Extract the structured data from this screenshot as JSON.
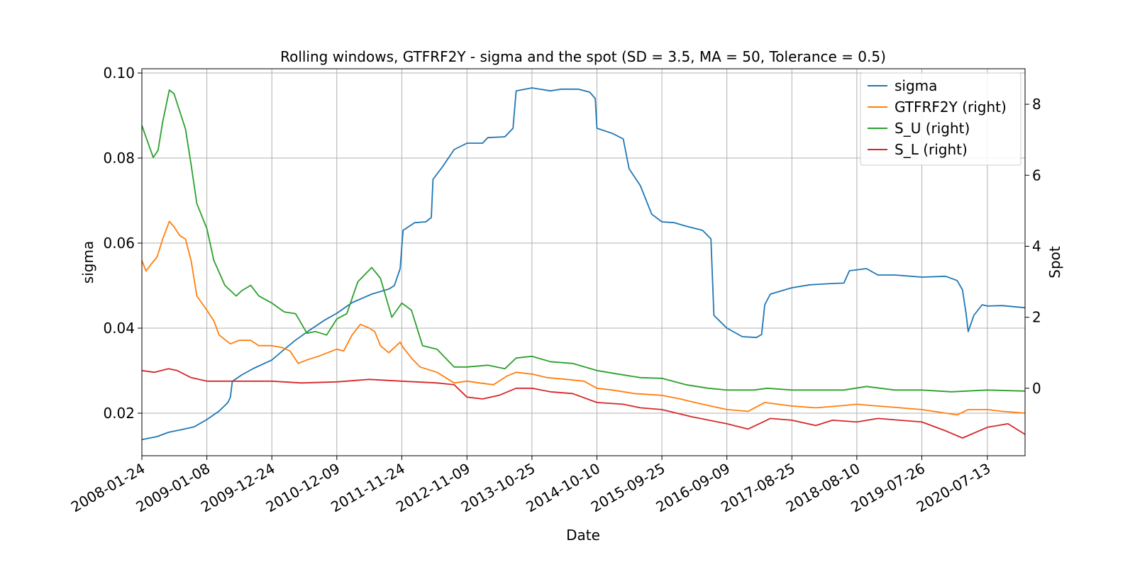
{
  "chart_data": {
    "type": "line",
    "title": "Rolling windows, GTFRF2Y - sigma and the spot (SD = 3.5, MA = 50, Tolerance  = 0.5)",
    "xlabel": "Date",
    "ylabel": "sigma",
    "ylabel_right": "Spot",
    "xlim": [
      "2008-01-24",
      "2021-02-01"
    ],
    "ylim": [
      0.01,
      0.101
    ],
    "ylim_right": [
      -1.9,
      9.0
    ],
    "x_ticks": [
      "2008-01-24",
      "2009-01-08",
      "2009-12-24",
      "2010-12-09",
      "2011-11-24",
      "2012-11-09",
      "2013-10-25",
      "2014-10-10",
      "2015-09-25",
      "2016-09-09",
      "2017-08-25",
      "2018-08-10",
      "2019-07-26",
      "2020-07-13"
    ],
    "y_ticks_left": [
      "0.02",
      "0.04",
      "0.06",
      "0.08",
      "0.10"
    ],
    "y_ticks_right": [
      "0",
      "2",
      "4",
      "6",
      "8"
    ],
    "grid": true,
    "legend_position": "top-right",
    "series": [
      {
        "name": "sigma",
        "axis": "left",
        "color": "#1f77b4",
        "points": [
          [
            "2008-01-24",
            0.0138
          ],
          [
            "2008-04-15",
            0.0145
          ],
          [
            "2008-06-15",
            0.0155
          ],
          [
            "2008-09-01",
            0.0162
          ],
          [
            "2008-11-01",
            0.0168
          ],
          [
            "2009-01-08",
            0.0185
          ],
          [
            "2009-03-15",
            0.0205
          ],
          [
            "2009-05-01",
            0.0225
          ],
          [
            "2009-05-15",
            0.0238
          ],
          [
            "2009-05-25",
            0.0275
          ],
          [
            "2009-07-15",
            0.029
          ],
          [
            "2009-09-15",
            0.0305
          ],
          [
            "2009-12-24",
            0.0325
          ],
          [
            "2010-03-01",
            0.035
          ],
          [
            "2010-05-01",
            0.0372
          ],
          [
            "2010-07-15",
            0.0395
          ],
          [
            "2010-10-01",
            0.0418
          ],
          [
            "2010-12-09",
            0.0435
          ],
          [
            "2011-03-01",
            0.046
          ],
          [
            "2011-06-15",
            0.048
          ],
          [
            "2011-09-15",
            0.0492
          ],
          [
            "2011-10-15",
            0.05
          ],
          [
            "2011-11-15",
            0.054
          ],
          [
            "2011-12-01",
            0.063
          ],
          [
            "2012-02-01",
            0.0648
          ],
          [
            "2012-04-01",
            0.065
          ],
          [
            "2012-05-01",
            0.066
          ],
          [
            "2012-05-10",
            0.075
          ],
          [
            "2012-07-01",
            0.078
          ],
          [
            "2012-09-01",
            0.082
          ],
          [
            "2012-11-09",
            0.0835
          ],
          [
            "2013-02-01",
            0.0835
          ],
          [
            "2013-03-01",
            0.0848
          ],
          [
            "2013-06-01",
            0.085
          ],
          [
            "2013-07-15",
            0.087
          ],
          [
            "2013-08-01",
            0.0958
          ],
          [
            "2013-10-25",
            0.0965
          ],
          [
            "2014-02-01",
            0.0958
          ],
          [
            "2014-04-01",
            0.0962
          ],
          [
            "2014-07-01",
            0.0962
          ],
          [
            "2014-09-01",
            0.0955
          ],
          [
            "2014-10-01",
            0.094
          ],
          [
            "2014-10-10",
            0.087
          ],
          [
            "2015-01-01",
            0.0858
          ],
          [
            "2015-03-01",
            0.0845
          ],
          [
            "2015-04-01",
            0.0775
          ],
          [
            "2015-06-01",
            0.0735
          ],
          [
            "2015-08-01",
            0.0668
          ],
          [
            "2015-09-25",
            0.065
          ],
          [
            "2015-12-01",
            0.0648
          ],
          [
            "2016-02-01",
            0.064
          ],
          [
            "2016-05-01",
            0.063
          ],
          [
            "2016-06-15",
            0.061
          ],
          [
            "2016-07-01",
            0.043
          ],
          [
            "2016-09-09",
            0.04
          ],
          [
            "2016-12-01",
            0.038
          ],
          [
            "2017-02-15",
            0.0378
          ],
          [
            "2017-03-15",
            0.0385
          ],
          [
            "2017-04-01",
            0.0455
          ],
          [
            "2017-05-01",
            0.048
          ],
          [
            "2017-08-25",
            0.0495
          ],
          [
            "2017-12-01",
            0.0502
          ],
          [
            "2018-04-01",
            0.0505
          ],
          [
            "2018-06-01",
            0.0506
          ],
          [
            "2018-07-01",
            0.0535
          ],
          [
            "2018-10-01",
            0.054
          ],
          [
            "2018-12-01",
            0.0525
          ],
          [
            "2019-03-01",
            0.0525
          ],
          [
            "2019-07-26",
            0.052
          ],
          [
            "2019-12-01",
            0.0522
          ],
          [
            "2020-02-01",
            0.0512
          ],
          [
            "2020-03-01",
            0.049
          ],
          [
            "2020-03-20",
            0.0435
          ],
          [
            "2020-04-01",
            0.0392
          ],
          [
            "2020-05-01",
            0.043
          ],
          [
            "2020-06-15",
            0.0455
          ],
          [
            "2020-07-13",
            0.0452
          ],
          [
            "2020-10-01",
            0.0453
          ],
          [
            "2021-02-01",
            0.0448
          ]
        ]
      },
      {
        "name": "GTFRF2Y (right)",
        "axis": "right",
        "color": "#ff7f0e",
        "points": [
          [
            "2008-01-24",
            3.6
          ],
          [
            "2008-02-15",
            3.3
          ],
          [
            "2008-03-15",
            3.5
          ],
          [
            "2008-04-15",
            3.7
          ],
          [
            "2008-05-15",
            4.2
          ],
          [
            "2008-06-20",
            4.7
          ],
          [
            "2008-07-15",
            4.55
          ],
          [
            "2008-08-15",
            4.3
          ],
          [
            "2008-09-15",
            4.2
          ],
          [
            "2008-10-15",
            3.6
          ],
          [
            "2008-11-15",
            2.6
          ],
          [
            "2009-01-08",
            2.2
          ],
          [
            "2009-02-15",
            1.9
          ],
          [
            "2009-03-15",
            1.5
          ],
          [
            "2009-05-15",
            1.25
          ],
          [
            "2009-07-01",
            1.35
          ],
          [
            "2009-09-01",
            1.35
          ],
          [
            "2009-10-15",
            1.2
          ],
          [
            "2009-12-24",
            1.2
          ],
          [
            "2010-02-15",
            1.15
          ],
          [
            "2010-04-01",
            1.05
          ],
          [
            "2010-05-15",
            0.7
          ],
          [
            "2010-07-01",
            0.8
          ],
          [
            "2010-09-01",
            0.9
          ],
          [
            "2010-12-09",
            1.1
          ],
          [
            "2011-01-15",
            1.05
          ],
          [
            "2011-03-01",
            1.5
          ],
          [
            "2011-04-15",
            1.8
          ],
          [
            "2011-06-01",
            1.7
          ],
          [
            "2011-07-01",
            1.6
          ],
          [
            "2011-08-01",
            1.2
          ],
          [
            "2011-09-15",
            1.0
          ],
          [
            "2011-11-15",
            1.3
          ],
          [
            "2011-12-01",
            1.15
          ],
          [
            "2012-01-15",
            0.85
          ],
          [
            "2012-03-01",
            0.6
          ],
          [
            "2012-06-01",
            0.45
          ],
          [
            "2012-08-01",
            0.25
          ],
          [
            "2012-09-01",
            0.15
          ],
          [
            "2012-11-09",
            0.2
          ],
          [
            "2013-01-15",
            0.15
          ],
          [
            "2013-04-01",
            0.1
          ],
          [
            "2013-06-15",
            0.35
          ],
          [
            "2013-08-01",
            0.45
          ],
          [
            "2013-10-25",
            0.4
          ],
          [
            "2014-01-15",
            0.3
          ],
          [
            "2014-05-01",
            0.25
          ],
          [
            "2014-08-01",
            0.2
          ],
          [
            "2014-10-10",
            0.0
          ],
          [
            "2015-01-01",
            -0.05
          ],
          [
            "2015-05-01",
            -0.15
          ],
          [
            "2015-09-25",
            -0.2
          ],
          [
            "2016-01-01",
            -0.3
          ],
          [
            "2016-05-01",
            -0.45
          ],
          [
            "2016-09-09",
            -0.6
          ],
          [
            "2017-01-01",
            -0.65
          ],
          [
            "2017-04-01",
            -0.4
          ],
          [
            "2017-08-25",
            -0.5
          ],
          [
            "2018-01-01",
            -0.55
          ],
          [
            "2018-05-01",
            -0.5
          ],
          [
            "2018-08-10",
            -0.45
          ],
          [
            "2018-12-01",
            -0.5
          ],
          [
            "2019-04-01",
            -0.55
          ],
          [
            "2019-07-26",
            -0.6
          ],
          [
            "2019-12-01",
            -0.7
          ],
          [
            "2020-02-01",
            -0.75
          ],
          [
            "2020-04-01",
            -0.6
          ],
          [
            "2020-07-13",
            -0.6
          ],
          [
            "2020-10-01",
            -0.65
          ],
          [
            "2021-02-01",
            -0.7
          ]
        ]
      },
      {
        "name": "S_U (right)",
        "axis": "right",
        "color": "#2ca02c",
        "points": [
          [
            "2008-01-24",
            7.4
          ],
          [
            "2008-02-20",
            7.0
          ],
          [
            "2008-03-25",
            6.5
          ],
          [
            "2008-04-20",
            6.7
          ],
          [
            "2008-05-15",
            7.5
          ],
          [
            "2008-06-20",
            8.4
          ],
          [
            "2008-07-15",
            8.3
          ],
          [
            "2008-08-15",
            7.8
          ],
          [
            "2008-09-15",
            7.3
          ],
          [
            "2008-10-15",
            6.3
          ],
          [
            "2008-11-15",
            5.2
          ],
          [
            "2009-01-08",
            4.5
          ],
          [
            "2009-02-15",
            3.6
          ],
          [
            "2009-04-15",
            2.9
          ],
          [
            "2009-06-15",
            2.6
          ],
          [
            "2009-07-15",
            2.75
          ],
          [
            "2009-09-01",
            2.9
          ],
          [
            "2009-10-15",
            2.6
          ],
          [
            "2009-12-24",
            2.4
          ],
          [
            "2010-03-01",
            2.15
          ],
          [
            "2010-05-01",
            2.1
          ],
          [
            "2010-07-01",
            1.55
          ],
          [
            "2010-08-15",
            1.6
          ],
          [
            "2010-10-15",
            1.5
          ],
          [
            "2010-12-09",
            1.95
          ],
          [
            "2011-02-01",
            2.1
          ],
          [
            "2011-04-01",
            3.0
          ],
          [
            "2011-06-15",
            3.4
          ],
          [
            "2011-08-01",
            3.1
          ],
          [
            "2011-10-01",
            2.0
          ],
          [
            "2011-11-24",
            2.4
          ],
          [
            "2012-01-15",
            2.2
          ],
          [
            "2012-03-15",
            1.2
          ],
          [
            "2012-06-01",
            1.1
          ],
          [
            "2012-09-01",
            0.6
          ],
          [
            "2012-11-09",
            0.6
          ],
          [
            "2013-03-01",
            0.65
          ],
          [
            "2013-06-01",
            0.55
          ],
          [
            "2013-08-01",
            0.85
          ],
          [
            "2013-10-25",
            0.9
          ],
          [
            "2014-02-01",
            0.75
          ],
          [
            "2014-06-01",
            0.7
          ],
          [
            "2014-10-10",
            0.5
          ],
          [
            "2015-02-01",
            0.4
          ],
          [
            "2015-06-01",
            0.3
          ],
          [
            "2015-09-25",
            0.28
          ],
          [
            "2016-02-01",
            0.1
          ],
          [
            "2016-06-01",
            0.0
          ],
          [
            "2016-09-09",
            -0.05
          ],
          [
            "2017-02-01",
            -0.05
          ],
          [
            "2017-04-15",
            0.0
          ],
          [
            "2017-08-25",
            -0.05
          ],
          [
            "2018-03-01",
            -0.05
          ],
          [
            "2018-06-01",
            -0.05
          ],
          [
            "2018-10-01",
            0.05
          ],
          [
            "2019-03-01",
            -0.05
          ],
          [
            "2019-07-26",
            -0.05
          ],
          [
            "2020-01-01",
            -0.1
          ],
          [
            "2020-07-13",
            -0.05
          ],
          [
            "2021-02-01",
            -0.08
          ]
        ]
      },
      {
        "name": "S_L (right)",
        "axis": "right",
        "color": "#d62728",
        "points": [
          [
            "2008-01-24",
            0.5
          ],
          [
            "2008-04-01",
            0.45
          ],
          [
            "2008-06-15",
            0.55
          ],
          [
            "2008-08-01",
            0.5
          ],
          [
            "2008-10-15",
            0.3
          ],
          [
            "2009-01-08",
            0.2
          ],
          [
            "2009-06-01",
            0.2
          ],
          [
            "2009-12-24",
            0.2
          ],
          [
            "2010-06-01",
            0.15
          ],
          [
            "2010-12-09",
            0.18
          ],
          [
            "2011-06-01",
            0.25
          ],
          [
            "2011-11-24",
            0.2
          ],
          [
            "2012-06-01",
            0.15
          ],
          [
            "2012-09-01",
            0.1
          ],
          [
            "2012-11-09",
            -0.25
          ],
          [
            "2013-02-01",
            -0.3
          ],
          [
            "2013-05-01",
            -0.2
          ],
          [
            "2013-08-01",
            0.0
          ],
          [
            "2013-10-25",
            0.0
          ],
          [
            "2014-02-01",
            -0.1
          ],
          [
            "2014-06-01",
            -0.15
          ],
          [
            "2014-10-10",
            -0.4
          ],
          [
            "2015-03-01",
            -0.45
          ],
          [
            "2015-06-01",
            -0.55
          ],
          [
            "2015-09-25",
            -0.6
          ],
          [
            "2016-03-01",
            -0.8
          ],
          [
            "2016-09-09",
            -1.0
          ],
          [
            "2017-01-01",
            -1.15
          ],
          [
            "2017-05-01",
            -0.85
          ],
          [
            "2017-08-25",
            -0.9
          ],
          [
            "2018-01-01",
            -1.05
          ],
          [
            "2018-04-01",
            -0.9
          ],
          [
            "2018-08-10",
            -0.95
          ],
          [
            "2018-12-01",
            -0.85
          ],
          [
            "2019-07-26",
            -0.95
          ],
          [
            "2019-12-01",
            -1.2
          ],
          [
            "2020-03-01",
            -1.4
          ],
          [
            "2020-07-13",
            -1.1
          ],
          [
            "2020-11-01",
            -1.0
          ],
          [
            "2021-02-01",
            -1.3
          ]
        ]
      }
    ]
  }
}
